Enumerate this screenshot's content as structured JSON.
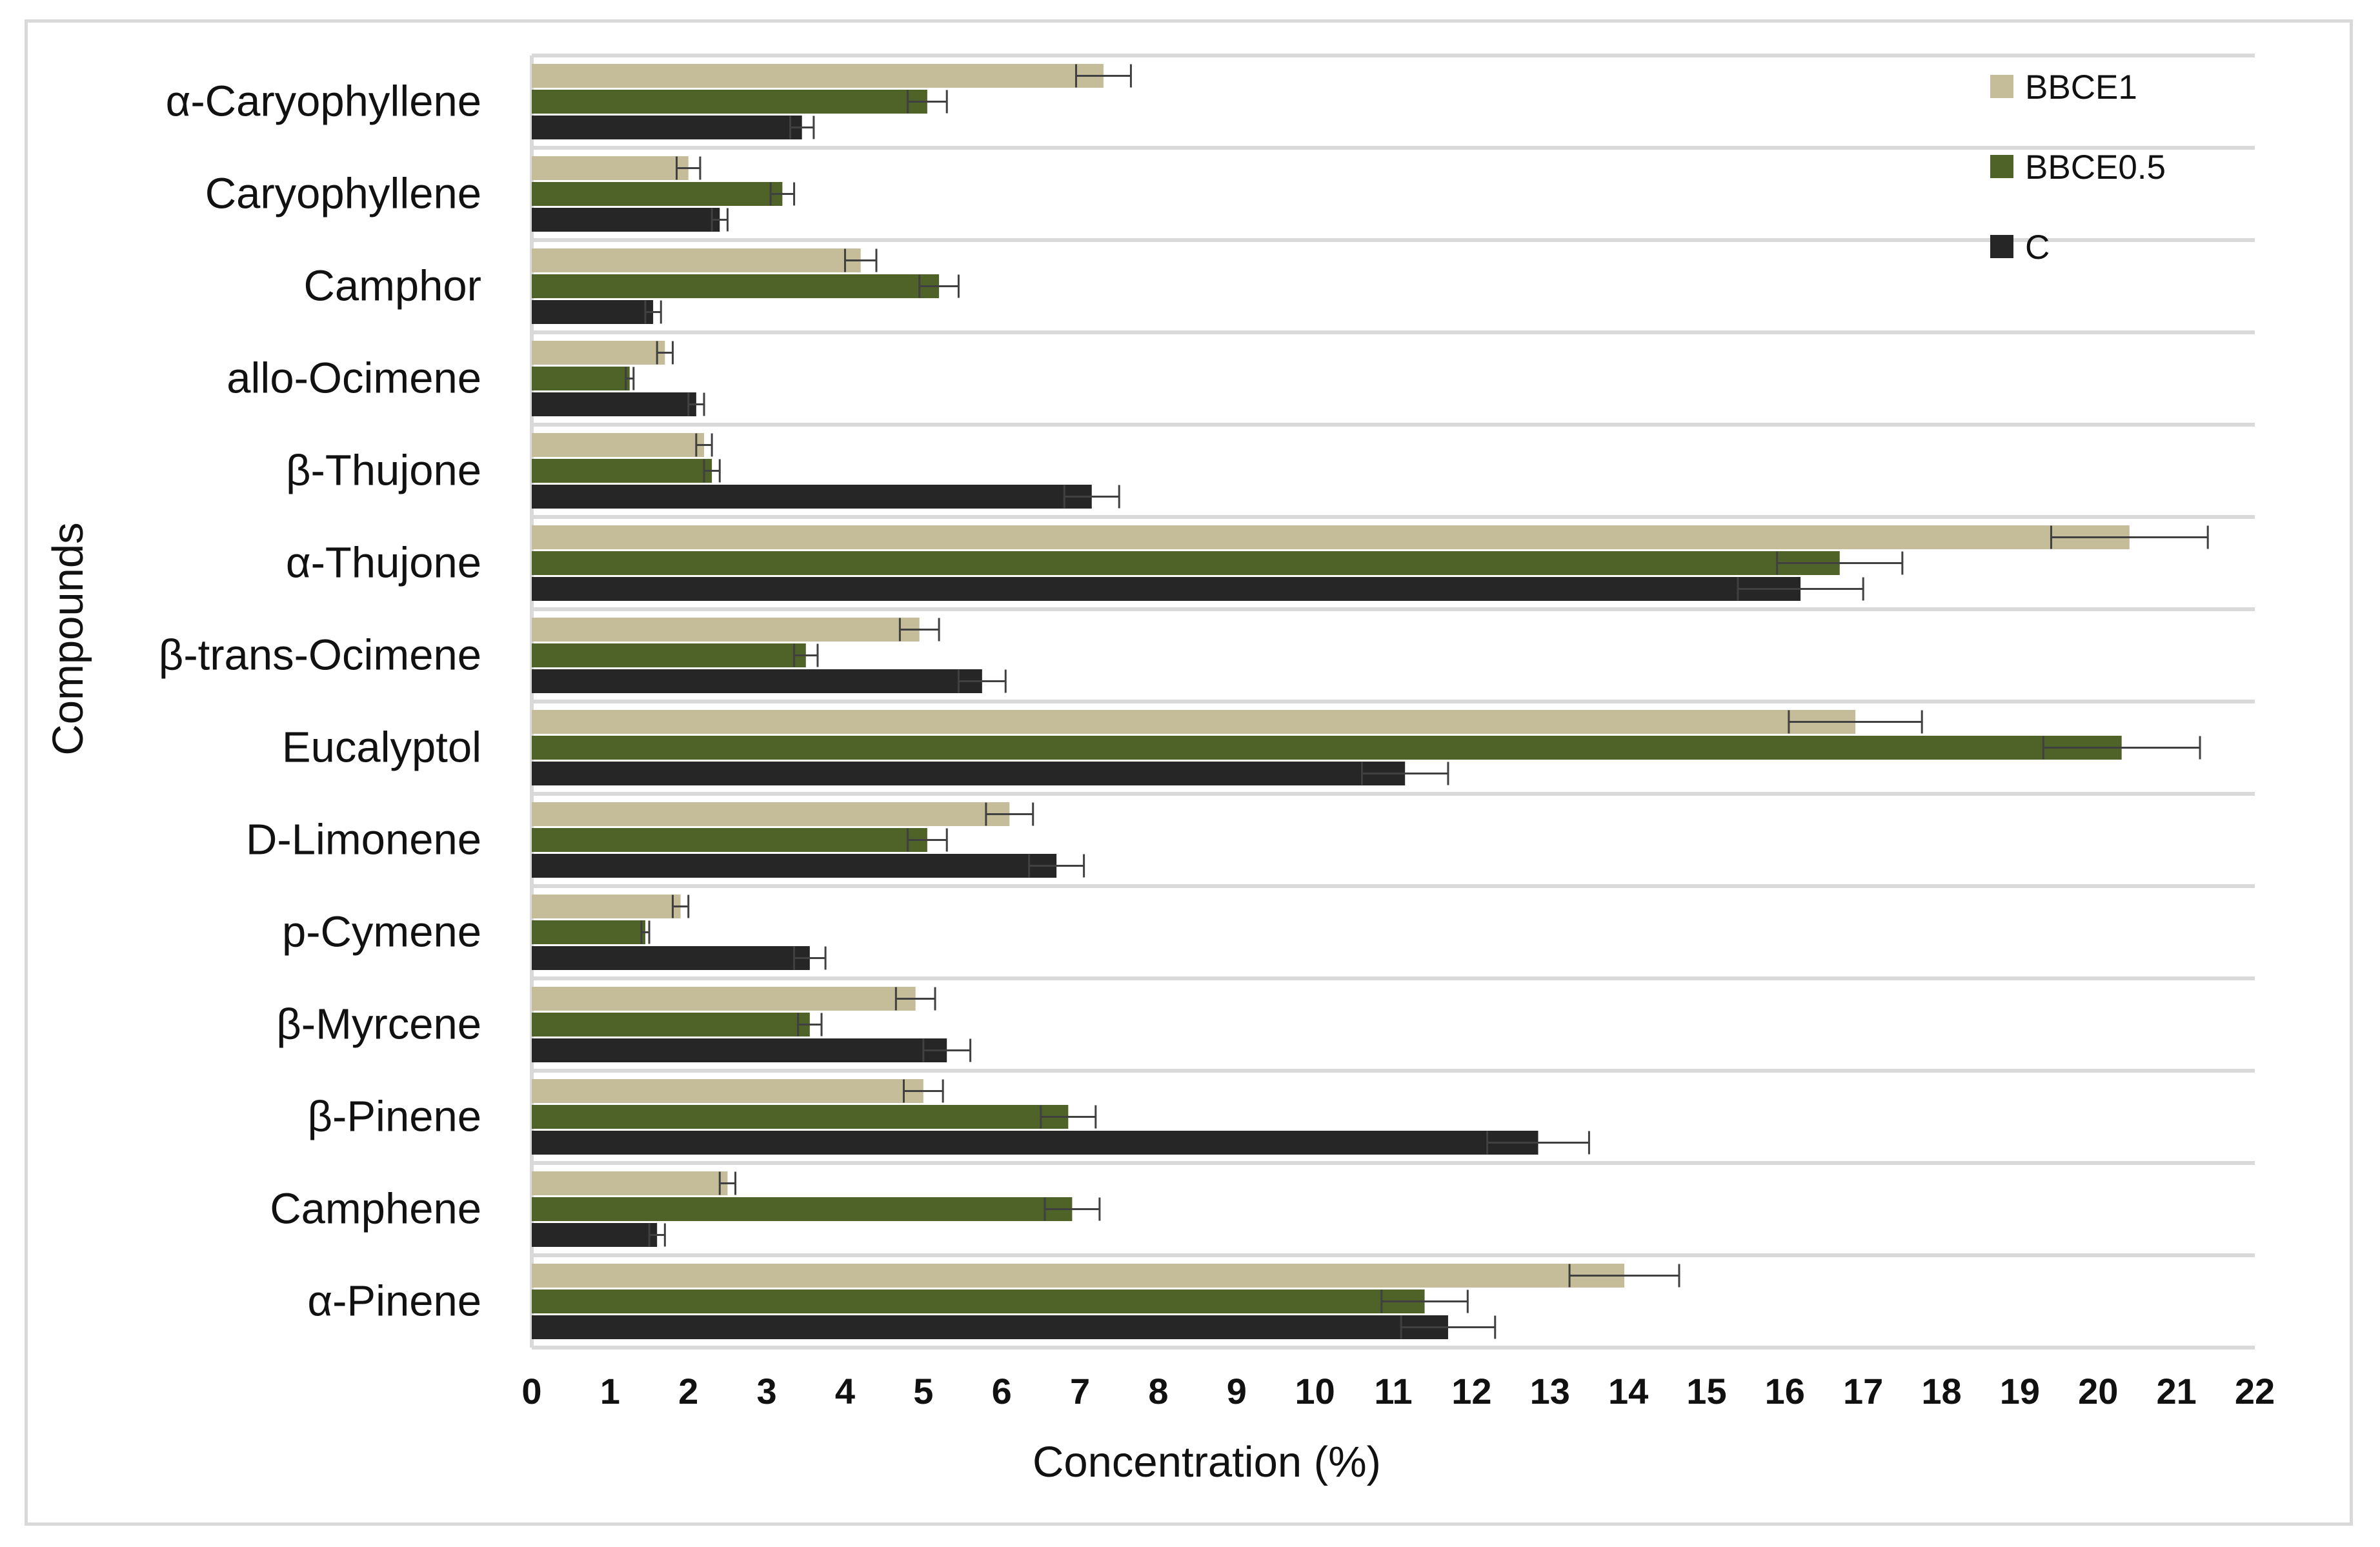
{
  "chart_data": {
    "type": "bar",
    "orientation": "horizontal",
    "xlabel": "Concentration (%)",
    "ylabel": "Compounds",
    "xlim": [
      0,
      22
    ],
    "x_ticks": [
      "0",
      "1",
      "2",
      "3",
      "4",
      "5",
      "6",
      "7",
      "8",
      "9",
      "10",
      "11",
      "12",
      "13",
      "14",
      "15",
      "16",
      "17",
      "18",
      "19",
      "20",
      "21",
      "22"
    ],
    "legend_position": "top-right",
    "categories": [
      "α-Caryophyllene",
      "Caryophyllene",
      "Camphor",
      "allo-Ocimene",
      "β-Thujone",
      "α-Thujone",
      "β-trans-Ocimene",
      "Eucalyptol",
      "D-Limonene",
      "p-Cymene",
      "β-Myrcene",
      "β-Pinene",
      "Camphene",
      "α-Pinene"
    ],
    "series": [
      {
        "name": "BBCE1",
        "color": "#c5bd9a",
        "values": [
          7.3,
          2.0,
          4.2,
          1.7,
          2.2,
          20.4,
          4.95,
          16.9,
          6.1,
          1.9,
          4.9,
          5.0,
          2.5,
          13.95
        ],
        "errors": [
          0.35,
          0.15,
          0.2,
          0.1,
          0.1,
          1.0,
          0.25,
          0.85,
          0.3,
          0.1,
          0.25,
          0.25,
          0.1,
          0.7
        ]
      },
      {
        "name": "BBCE0.5",
        "color": "#4f6228",
        "values": [
          5.05,
          3.2,
          5.2,
          1.25,
          2.3,
          16.7,
          3.5,
          20.3,
          5.05,
          1.45,
          3.55,
          6.85,
          6.9,
          11.4
        ],
        "errors": [
          0.25,
          0.15,
          0.25,
          0.05,
          0.1,
          0.8,
          0.15,
          1.0,
          0.25,
          0.05,
          0.15,
          0.35,
          0.35,
          0.55
        ]
      },
      {
        "name": "C",
        "color": "#262626",
        "values": [
          3.45,
          2.4,
          1.55,
          2.1,
          7.15,
          16.2,
          5.75,
          11.15,
          6.7,
          3.55,
          5.3,
          12.85,
          1.6,
          11.7
        ],
        "errors": [
          0.15,
          0.1,
          0.1,
          0.1,
          0.35,
          0.8,
          0.3,
          0.55,
          0.35,
          0.2,
          0.3,
          0.65,
          0.1,
          0.6
        ]
      }
    ]
  }
}
